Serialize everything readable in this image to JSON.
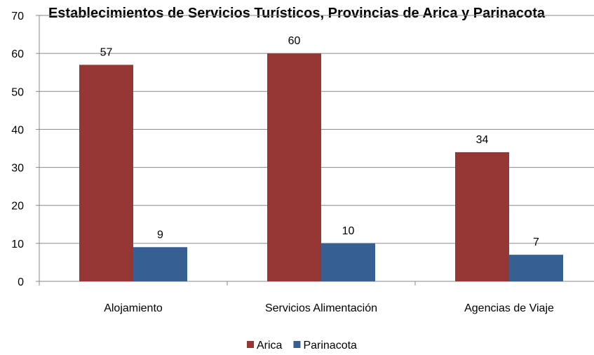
{
  "chart_data": {
    "type": "bar",
    "title": "Establecimientos de Servicios Turísticos, Provincias de Arica y Parinacota",
    "xlabel": "",
    "ylabel": "",
    "categories": [
      "Alojamiento",
      "Servicios Alimentación",
      "Agencias de Viaje"
    ],
    "series": [
      {
        "name": "Arica",
        "values": [
          57,
          60,
          34
        ],
        "color": "#953735"
      },
      {
        "name": "Parinacota",
        "values": [
          9,
          10,
          7
        ],
        "color": "#376092"
      }
    ],
    "ylim": [
      0,
      70
    ],
    "yticks": [
      0,
      10,
      20,
      30,
      40,
      50,
      60,
      70
    ],
    "grid": true,
    "legend_position": "bottom"
  }
}
